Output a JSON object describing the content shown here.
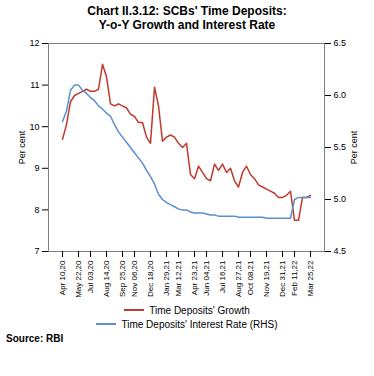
{
  "chart_data": {
    "type": "line",
    "title": "Chart II.3.12: SCBs' Time Deposits:\nY-o-Y Growth and Interest Rate",
    "ylabel": "Per cent",
    "y2label": "Per cent",
    "annotations": [
      "Source: RBI"
    ],
    "categories": [
      "Apr 10,20",
      null,
      null,
      null,
      "May 22,20",
      null,
      null,
      "Jul 03,20",
      null,
      null,
      null,
      "Aug 14,20",
      null,
      null,
      null,
      "Sep 25,20",
      null,
      null,
      "Nov 06,20",
      null,
      null,
      null,
      "Dec 18,20",
      null,
      null,
      null,
      "Jan 29,21",
      null,
      null,
      "Mar 12,21",
      null,
      null,
      null,
      "Apr 23,21",
      null,
      null,
      "Jun 04,21",
      null,
      null,
      null,
      "Jul 16,21",
      null,
      null,
      null,
      "Aug 27,21",
      null,
      null,
      "Oct 08,21",
      null,
      null,
      null,
      "Nov 19,21",
      null,
      null,
      null,
      "Dec 31,21",
      null,
      null,
      "Feb 11,22",
      null,
      null,
      null,
      "Mar 25,22"
    ],
    "series": [
      {
        "name": "Time Deposits' Growth",
        "color": "#c0392b",
        "values": [
          9.7,
          10.05,
          10.6,
          10.75,
          10.8,
          10.85,
          10.9,
          10.85,
          10.85,
          10.9,
          11.5,
          11.2,
          10.55,
          10.5,
          10.55,
          10.5,
          10.45,
          10.3,
          10.25,
          10.1,
          10.1,
          9.75,
          9.6,
          10.95,
          10.5,
          9.65,
          9.75,
          9.8,
          9.75,
          9.6,
          9.5,
          9.6,
          8.85,
          8.75,
          9.05,
          8.9,
          8.75,
          8.7,
          9.1,
          8.95,
          9.1,
          8.9,
          9.0,
          8.7,
          8.55,
          8.9,
          9.05,
          8.85,
          8.75,
          8.6,
          8.55,
          8.5,
          8.45,
          8.4,
          8.3,
          8.3,
          8.35,
          8.45,
          7.75,
          7.75,
          8.3,
          8.3,
          8.35
        ]
      },
      {
        "name": "Time Deposits' Interest Rate (RHS)",
        "color": "#5b8fcc",
        "axis": "y2",
        "values": [
          5.75,
          5.85,
          6.05,
          6.1,
          6.1,
          6.05,
          6.02,
          5.98,
          5.95,
          5.9,
          5.87,
          5.83,
          5.8,
          5.72,
          5.65,
          5.6,
          5.55,
          5.5,
          5.45,
          5.4,
          5.35,
          5.28,
          5.22,
          5.15,
          5.05,
          5.0,
          4.97,
          4.95,
          4.93,
          4.91,
          4.9,
          4.9,
          4.88,
          4.87,
          4.87,
          4.87,
          4.86,
          4.85,
          4.85,
          4.84,
          4.84,
          4.84,
          4.84,
          4.84,
          4.83,
          4.83,
          4.83,
          4.83,
          4.83,
          4.83,
          4.83,
          4.82,
          4.82,
          4.82,
          4.82,
          4.82,
          4.82,
          4.82,
          5.0,
          5.02,
          5.02,
          5.02,
          5.02
        ]
      }
    ],
    "ylim": [
      7,
      12
    ],
    "yticks": [
      7,
      8,
      9,
      10,
      11,
      12
    ],
    "y2lim": [
      4.5,
      6.5
    ],
    "y2ticks": [
      4.5,
      {
        "value": 5.0,
        "label": "5.0"
      },
      5.5,
      {
        "value": 6.0,
        "label": "6.0"
      },
      6.5
    ],
    "grid": false,
    "legend": "bottom"
  }
}
